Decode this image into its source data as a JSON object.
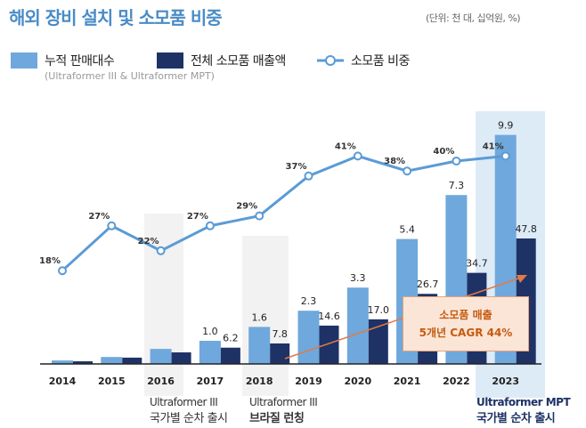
{
  "title": "해외 장비 설치 및 소모품 비중",
  "unit_note": "(단위: 천 대, 십억원, %)",
  "legend_subtitle": "(Ultraformer III & Ultraformer MPT)",
  "colors": {
    "units": "#6fa8dc",
    "consumables": "#1f3266",
    "share": "#5b9bd5",
    "title": "#4a8cc7",
    "annotation": "#c55a11",
    "annotation_bg": "#fbe5d6"
  },
  "chart_data": {
    "type": "bar",
    "categories": [
      "2014",
      "2015",
      "2016",
      "2017",
      "2018",
      "2019",
      "2020",
      "2021",
      "2022",
      "2023"
    ],
    "series": [
      {
        "name": "누적 판매대수",
        "type": "bar",
        "values": [
          0.15,
          0.3,
          0.65,
          1.0,
          1.6,
          2.3,
          3.3,
          5.4,
          7.3,
          9.9
        ],
        "labels": [
          null,
          null,
          null,
          "1.0",
          "1.6",
          "2.3",
          "3.3",
          "5.4",
          "7.3",
          "9.9"
        ]
      },
      {
        "name": "전체 소모품 매출액",
        "type": "bar",
        "values": [
          1.0,
          2.4,
          4.4,
          6.2,
          7.8,
          14.6,
          17.0,
          26.7,
          34.7,
          47.8
        ],
        "labels": [
          null,
          null,
          null,
          "6.2",
          "7.8",
          "14.6",
          "17.0",
          "26.7",
          "34.7",
          "47.8"
        ]
      },
      {
        "name": "소모품 비중",
        "type": "line",
        "values": [
          18,
          27,
          22,
          27,
          29,
          37,
          41,
          38,
          40,
          41
        ],
        "labels": [
          "18%",
          "27%",
          "22%",
          "27%",
          "29%",
          "37%",
          "41%",
          "38%",
          "40%",
          "41%"
        ]
      }
    ],
    "annotation": {
      "line1": "소모품 매출",
      "line2": "5개년 CAGR 44%"
    },
    "events": [
      {
        "year": "2016",
        "line1": "Ultraformer III",
        "line2": "국가별 순차 출시"
      },
      {
        "year": "2018",
        "line1": "Ultraformer III",
        "line2": "브라질 런칭"
      },
      {
        "year": "2023",
        "line1": "Ultraformer MPT",
        "line2": "국가별 순차 출시"
      }
    ],
    "grid": false,
    "legend_placement": "top-left"
  }
}
